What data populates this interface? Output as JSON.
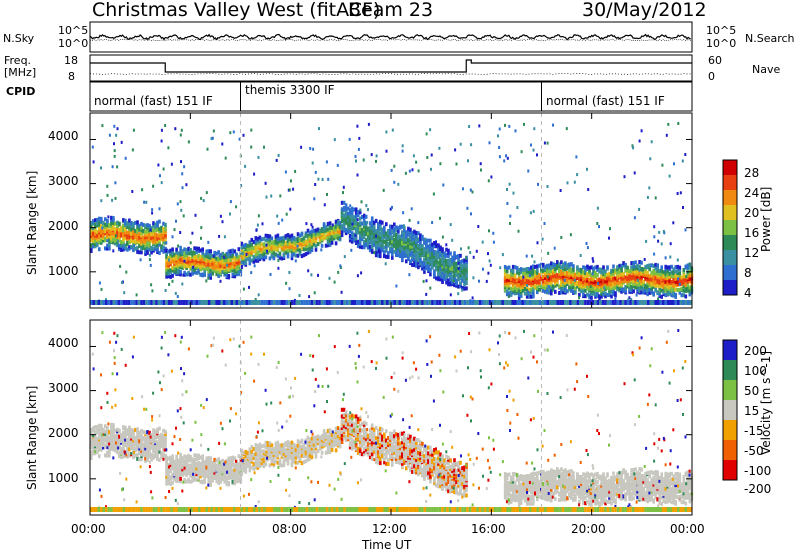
{
  "header": {
    "site": "Christmas Valley West (fitACF)",
    "beam": "Beam 23",
    "date": "30/May/2012"
  },
  "side_labels": {
    "nsky": "N.Sky",
    "freq_line1": "Freq.",
    "freq_line2": "[MHz]",
    "cpid": "CPID",
    "nsearch": "N.Search",
    "nave": "Nave"
  },
  "noise_panel": {
    "left_ticks": [
      "10^5",
      "10^0"
    ],
    "right_ticks": [
      "10^5",
      "10^0"
    ]
  },
  "freq_panel": {
    "left_ticks": [
      "18",
      "8"
    ],
    "right_ticks": [
      "60",
      "0"
    ]
  },
  "cpid_modes": [
    {
      "label": "normal (fast) 151 IF",
      "start_hour": 0.0
    },
    {
      "label": "themis 3300 IF",
      "start_hour": 6.0
    },
    {
      "label": "normal (fast) 151 IF",
      "start_hour": 18.0
    }
  ],
  "colors": {
    "frame": "#000000",
    "grid": "#cccccc",
    "ground_scatter": "#c8c8c0",
    "power_scale": [
      "#1e1ec8",
      "#2f6fd0",
      "#3a8fa0",
      "#2e8b57",
      "#7cc044",
      "#e0c020",
      "#f08a10",
      "#e84010",
      "#d00000"
    ],
    "velocity_scale": [
      "#1e1ec8",
      "#2e8b57",
      "#7cc044",
      "#c8c8c0",
      "#f0a000",
      "#f06000",
      "#e00000"
    ]
  },
  "chart_data": [
    {
      "type": "heatmap",
      "title": "Power",
      "xlabel": "Time UT",
      "ylabel": "Slant Range [km]",
      "xlim_hours": [
        0,
        24
      ],
      "ylim": [
        180,
        4600
      ],
      "x_ticks": [
        "00:00",
        "04:00",
        "08:00",
        "12:00",
        "16:00",
        "20:00",
        "00:00"
      ],
      "y_ticks": [
        "1000",
        "2000",
        "3000",
        "4000"
      ],
      "colorbar": {
        "label": "Power [dB]",
        "ticks": [
          "28",
          "24",
          "20",
          "16",
          "12",
          "8",
          "4"
        ],
        "range": [
          0,
          30
        ]
      },
      "scatter_bands": [
        {
          "start_hour": 0.0,
          "end_hour": 3.0,
          "center_km": [
            1850,
            1850
          ],
          "width_km": 350,
          "peak_db": 26
        },
        {
          "start_hour": 3.0,
          "end_hour": 6.0,
          "center_km": [
            1200,
            1250
          ],
          "width_km": 300,
          "peak_db": 26
        },
        {
          "start_hour": 6.0,
          "end_hour": 10.0,
          "center_km": [
            1400,
            1900
          ],
          "width_km": 250,
          "peak_db": 22
        },
        {
          "start_hour": 10.0,
          "end_hour": 15.0,
          "center_km": [
            2200,
            1000
          ],
          "width_km": 400,
          "peak_db": 12
        },
        {
          "start_hour": 16.5,
          "end_hour": 24.0,
          "center_km": [
            850,
            850
          ],
          "width_km": 350,
          "peak_db": 28
        }
      ]
    },
    {
      "type": "heatmap",
      "title": "Velocity",
      "xlabel": "Time UT",
      "ylabel": "Slant Range [km]",
      "xlim_hours": [
        0,
        24
      ],
      "ylim": [
        180,
        4600
      ],
      "x_ticks": [
        "00:00",
        "04:00",
        "08:00",
        "12:00",
        "16:00",
        "20:00",
        "00:00"
      ],
      "y_ticks": [
        "1000",
        "2000",
        "3000",
        "4000"
      ],
      "colorbar": {
        "label": "Velocity [m s^-1]",
        "ticks": [
          "200",
          "100",
          "50",
          "15",
          "-15",
          "-50",
          "-100",
          "-200"
        ],
        "range": [
          -250,
          250
        ]
      }
    }
  ],
  "xaxis_title": "Time UT"
}
